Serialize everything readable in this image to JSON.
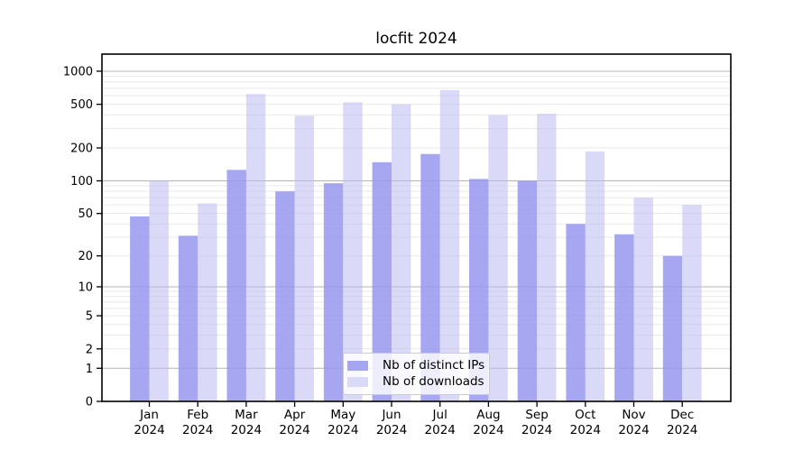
{
  "chart_data": {
    "type": "bar",
    "title": "locfit 2024",
    "categories": [
      "Jan",
      "Feb",
      "Mar",
      "Apr",
      "May",
      "Jun",
      "Jul",
      "Aug",
      "Sep",
      "Oct",
      "Nov",
      "Dec"
    ],
    "year_label": "2024",
    "series": [
      {
        "name": "Nb of distinct IPs",
        "color": "#a5a5f0",
        "fill": "rgba(150,150,238,0.85)",
        "values": [
          47,
          31,
          126,
          80,
          95,
          148,
          176,
          104,
          100,
          40,
          32,
          20
        ]
      },
      {
        "name": "Nb of downloads",
        "color": "#dadaf8",
        "fill": "rgba(188,188,243,0.55)",
        "values": [
          100,
          62,
          620,
          393,
          522,
          500,
          672,
          398,
          410,
          186,
          70,
          60
        ]
      }
    ],
    "yscale": "log1p",
    "yticks": [
      0,
      1,
      2,
      5,
      10,
      20,
      50,
      100,
      200,
      500,
      1000
    ],
    "major_gridlines": [
      1,
      10,
      100,
      1000
    ],
    "minor_gridlines": [
      2,
      3,
      4,
      5,
      6,
      7,
      8,
      9,
      20,
      30,
      40,
      50,
      60,
      70,
      80,
      90,
      200,
      300,
      400,
      500,
      600,
      700,
      800,
      900
    ],
    "grid": true,
    "legend_position": "lower center"
  },
  "colors": {
    "grid_major": "#b4b4b4",
    "grid_minor": "#e9e9e9",
    "axis": "#000000",
    "text": "#000000",
    "legend_border": "#cccccc",
    "legend_bg": "rgba(255,255,255,0.8)"
  }
}
